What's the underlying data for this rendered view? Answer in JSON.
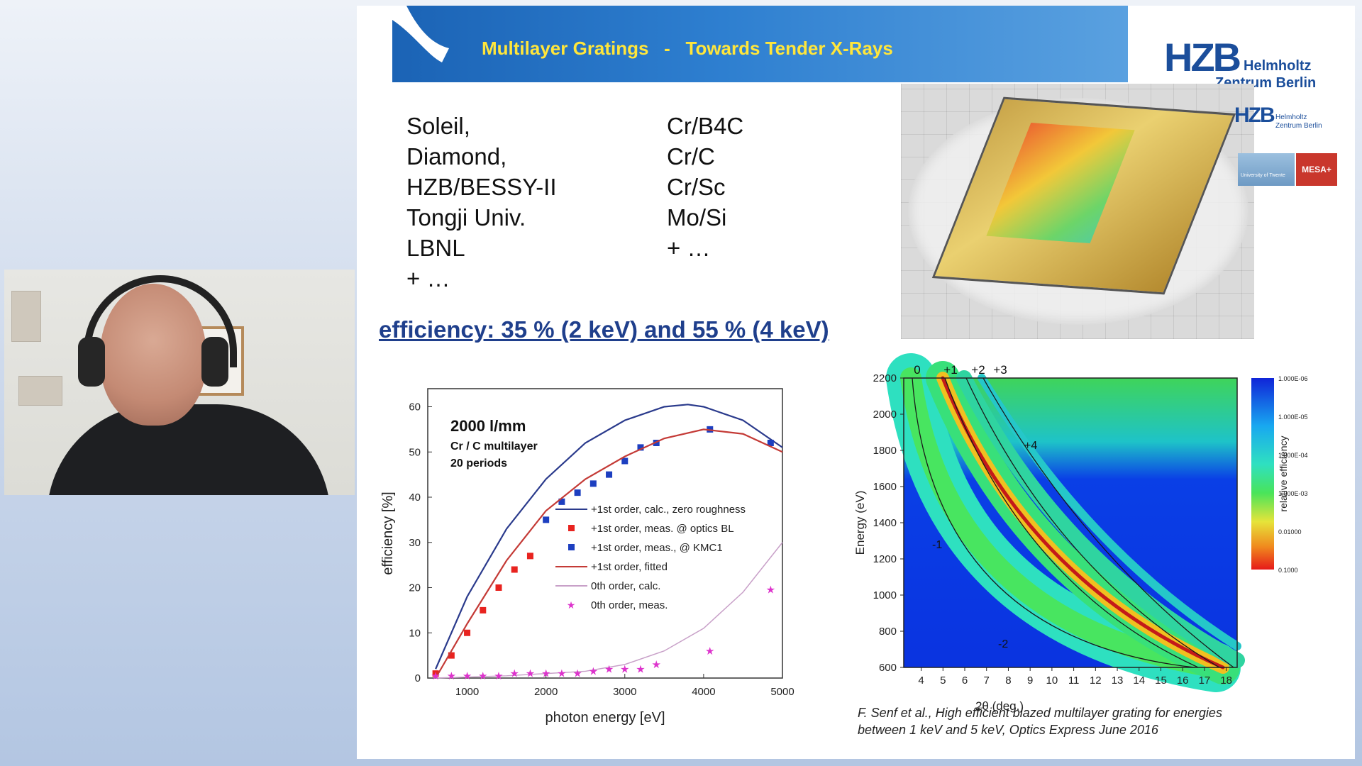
{
  "slide": {
    "title": "Multilayer Gratings   -   Towards Tender X-Rays",
    "logo": {
      "main": "HZB",
      "sub1": "Helmholtz",
      "sub2": "Zentrum Berlin"
    },
    "mini_logo": {
      "main": "HZB",
      "sub1": "Helmholtz",
      "sub2": "Zentrum Berlin"
    },
    "badge_right": "MESA+",
    "badge_left": "University of Twente",
    "facilities": [
      "Soleil,",
      "Diamond,",
      "HZB/BESSY-II",
      "Tongji Univ.",
      "LBNL",
      "+ …"
    ],
    "materials": [
      "Cr/B4C",
      "Cr/C",
      "Cr/Sc",
      "Mo/Si",
      "+ …"
    ],
    "efficiency_line": "efficiency:  35 % (2 keV) and 55 % (4 keV)",
    "caption_line1": "F. Senf et al., High efficient blazed multilayer grating for energies",
    "caption_line2": "between 1 keV and 5 keV, Optics Express June 2016"
  },
  "colors": {
    "banner": "#1b63b5",
    "title": "#ffe63b",
    "hzb_blue": "#1b4e9b",
    "calc_curve": "#2a3a8c",
    "fit_curve": "#c43a36",
    "zero_calc": "#c8a0c8",
    "red_marker": "#e8231f",
    "blue_marker": "#1d3fc0",
    "magenta_marker": "#dd33cc"
  },
  "chart_data": [
    {
      "type": "scatter",
      "annot_title": "2000 l/mm",
      "annot_sub1": "Cr / C multilayer",
      "annot_sub2": "20 periods",
      "xlabel": "photon energy [eV]",
      "ylabel": "efficiency [%]",
      "xlim": [
        500,
        5000
      ],
      "ylim": [
        0,
        64
      ],
      "xticks": [
        1000,
        2000,
        3000,
        4000,
        5000
      ],
      "yticks": [
        0,
        10,
        20,
        30,
        40,
        50,
        60
      ],
      "legend": [
        "+1st order, calc., zero roughness",
        "+1st order, meas. @ optics BL",
        "+1st order, meas., @ KMC1",
        "+1st order, fitted",
        "0th order, calc.",
        "0th order, meas."
      ],
      "series": [
        {
          "name": "+1st order, calc., zero roughness",
          "kind": "line",
          "x": [
            600,
            1000,
            1500,
            2000,
            2500,
            3000,
            3500,
            3800,
            4000,
            4500,
            5000
          ],
          "y": [
            2,
            18,
            33,
            44,
            52,
            57,
            60,
            60.5,
            60,
            57,
            51
          ]
        },
        {
          "name": "+1st order, meas. @ optics BL",
          "kind": "square",
          "x": [
            600,
            800,
            1000,
            1200,
            1400,
            1600,
            1800
          ],
          "y": [
            1,
            5,
            10,
            15,
            20,
            24,
            27
          ]
        },
        {
          "name": "+1st order, meas., @ KMC1",
          "kind": "square",
          "x": [
            2000,
            2200,
            2400,
            2600,
            2800,
            3000,
            3200,
            3400,
            4080,
            4850
          ],
          "y": [
            35,
            39,
            41,
            43,
            45,
            48,
            51,
            52,
            55,
            52
          ]
        },
        {
          "name": "+1st order, fitted",
          "kind": "line",
          "x": [
            600,
            1000,
            1500,
            2000,
            2500,
            3000,
            3500,
            4000,
            4500,
            5000
          ],
          "y": [
            0,
            12,
            26,
            37,
            44,
            49,
            53,
            55,
            54,
            50
          ]
        },
        {
          "name": "0th order, calc.",
          "kind": "line",
          "x": [
            600,
            1500,
            2500,
            3000,
            3500,
            4000,
            4500,
            5000
          ],
          "y": [
            0,
            0.5,
            1.5,
            3,
            6,
            11,
            19,
            30
          ]
        },
        {
          "name": "0th order, meas.",
          "kind": "star",
          "x": [
            600,
            800,
            1000,
            1200,
            1400,
            1600,
            1800,
            2000,
            2200,
            2400,
            2600,
            2800,
            3000,
            3200,
            3400,
            4080,
            4850
          ],
          "y": [
            0.5,
            0.5,
            0.5,
            0.5,
            0.5,
            1,
            1,
            1,
            1,
            1,
            1.5,
            2,
            2,
            2,
            3,
            6,
            19.5
          ]
        }
      ]
    },
    {
      "type": "heatmap",
      "xlabel": "2θ (deg.)",
      "ylabel": "Energy (eV)",
      "xlim": [
        3.2,
        18.5
      ],
      "ylim": [
        600,
        2200
      ],
      "xticks": [
        4,
        5,
        6,
        7,
        8,
        9,
        10,
        11,
        12,
        13,
        14,
        15,
        16,
        17,
        18
      ],
      "yticks": [
        600,
        800,
        1000,
        1200,
        1400,
        1600,
        1800,
        2000,
        2200
      ],
      "order_labels_top": [
        "0",
        "+1",
        "+2",
        "+3"
      ],
      "order_labels_inner": [
        "+4",
        "-1",
        "-2"
      ],
      "colorbar_label": "relative efficiency",
      "colorbar_ticks": [
        "1.000E-06",
        "1.000E-05",
        "1.000E-04",
        "1.000E-03",
        "0.01000",
        "0.1000"
      ]
    }
  ]
}
